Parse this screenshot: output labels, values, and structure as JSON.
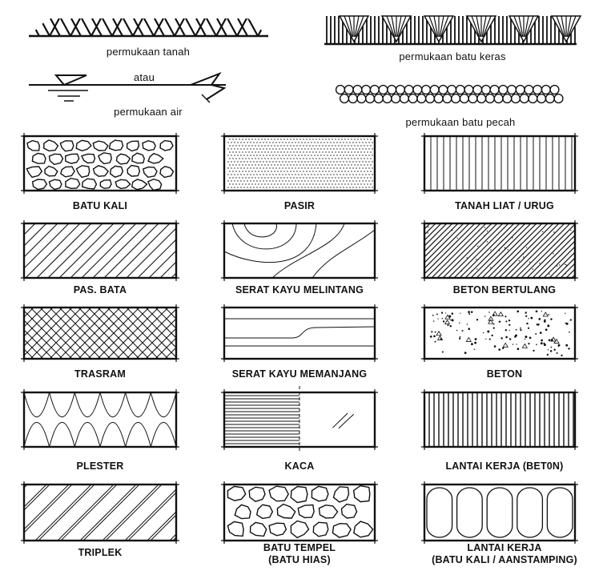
{
  "top_symbols": {
    "ground_surface": "permukaan tanah",
    "rock_surface": "permukaan batu keras",
    "or_word": "atau",
    "water_surface": "permukaan air",
    "gravel_surface": "permukaan batu pecah"
  },
  "materials": [
    {
      "label": "BATU KALI"
    },
    {
      "label": "PASIR"
    },
    {
      "label": "TANAH LIAT / URUG"
    },
    {
      "label": "PAS. BATA"
    },
    {
      "label": "SERAT KAYU MELINTANG"
    },
    {
      "label": "BETON BERTULANG"
    },
    {
      "label": "TRASRAM"
    },
    {
      "label": "SERAT KAYU MEMANJANG"
    },
    {
      "label": "BETON"
    },
    {
      "label": "PLESTER"
    },
    {
      "label": "KACA"
    },
    {
      "label": "LANTAI KERJA (BET0N)"
    },
    {
      "label": "TRIPLEK"
    },
    {
      "label": "BATU TEMPEL",
      "label2": "(BATU HIAS)"
    },
    {
      "label": "LANTAI KERJA",
      "label2": "(BATU KALI / AANSTAMPING)"
    }
  ]
}
